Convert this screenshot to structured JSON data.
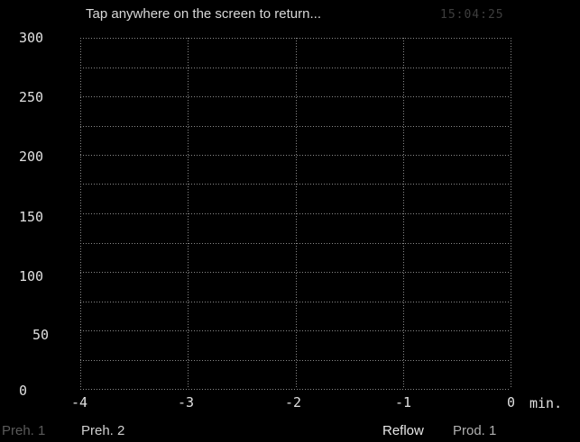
{
  "header": {
    "hint": "Tap anywhere on the screen to return...",
    "clock": "15:04:25"
  },
  "chart_data": {
    "type": "line",
    "title": "",
    "xlabel": "min.",
    "ylabel": "",
    "xlim": [
      -4,
      0
    ],
    "ylim": [
      0,
      300
    ],
    "x_ticks": [
      "-4",
      "-3",
      "-2",
      "-1",
      "0"
    ],
    "y_ticks": [
      "300",
      "250",
      "200",
      "150",
      "100",
      "50",
      "0"
    ],
    "grid": true,
    "series": []
  },
  "phases": [
    {
      "label": "Preh. 1",
      "color": "#5a5a5a"
    },
    {
      "label": "Preh. 2",
      "color": "#d0d0d0"
    },
    {
      "label": "Reflow",
      "color": "#e8e8e8"
    },
    {
      "label": "Prod. 1",
      "color": "#b0b0b0"
    }
  ],
  "colors": {
    "background": "#000000",
    "grid": "#8a8a8a",
    "text": "#e0e0e0"
  }
}
